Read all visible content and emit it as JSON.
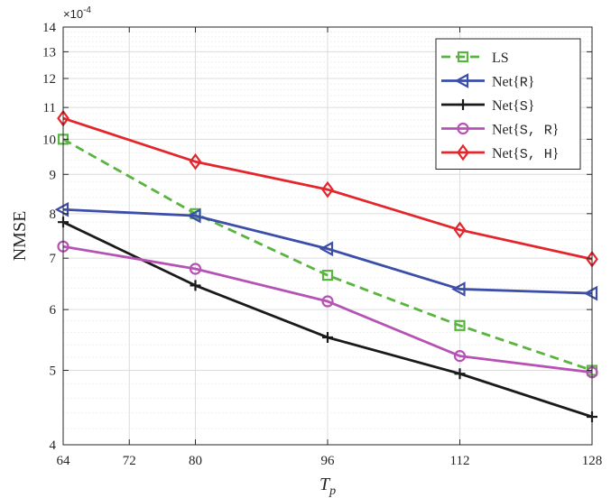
{
  "chart_data": {
    "type": "line",
    "xlabel": "T",
    "xlabel_sub": "p",
    "ylabel": "NMSE",
    "x_scale": "linear",
    "y_scale": "log",
    "xlim": [
      64,
      128
    ],
    "ylim": [
      4,
      14
    ],
    "x_ticks": [
      64,
      72,
      80,
      96,
      112,
      128
    ],
    "x_tick_labels": [
      "64",
      "72",
      "80",
      "96",
      "112",
      "128"
    ],
    "y_ticks": [
      4,
      5,
      6,
      7,
      8,
      9,
      10,
      11,
      12,
      13,
      14
    ],
    "y_tick_labels": [
      "4",
      "5",
      "6",
      "7",
      "8",
      "9",
      "10",
      "11",
      "12",
      "13",
      "14"
    ],
    "y_exponent": "×10",
    "y_exponent_power": "-4",
    "grid": true,
    "legend_position": "top-right",
    "x": [
      64,
      80,
      96,
      112,
      128
    ],
    "series": [
      {
        "name": "LS",
        "color": "#5ab440",
        "dashed": true,
        "marker": "square",
        "values": [
          10.0,
          8.0,
          6.65,
          5.72,
          5.0
        ]
      },
      {
        "name": "Net{R}",
        "name_main": "Net",
        "name_inner": "R",
        "color": "#3c4ea8",
        "dashed": false,
        "marker": "triangle-left",
        "values": [
          8.1,
          7.95,
          7.2,
          6.38,
          6.3
        ]
      },
      {
        "name": "Net{S}",
        "name_main": "Net",
        "name_inner": "S",
        "color": "#1a1a1a",
        "dashed": false,
        "marker": "plus",
        "values": [
          7.8,
          6.45,
          5.52,
          4.95,
          4.35
        ]
      },
      {
        "name": "Net{S, R}",
        "name_main": "Net",
        "name_inner": "S, R",
        "color": "#b752b5",
        "dashed": false,
        "marker": "circle",
        "values": [
          7.25,
          6.78,
          6.15,
          5.22,
          4.97
        ]
      },
      {
        "name": "Net{S, H}",
        "name_main": "Net",
        "name_inner": "S, H",
        "color": "#e3262c",
        "dashed": false,
        "marker": "diamond",
        "values": [
          10.65,
          9.35,
          8.6,
          7.62,
          6.98
        ]
      }
    ]
  }
}
